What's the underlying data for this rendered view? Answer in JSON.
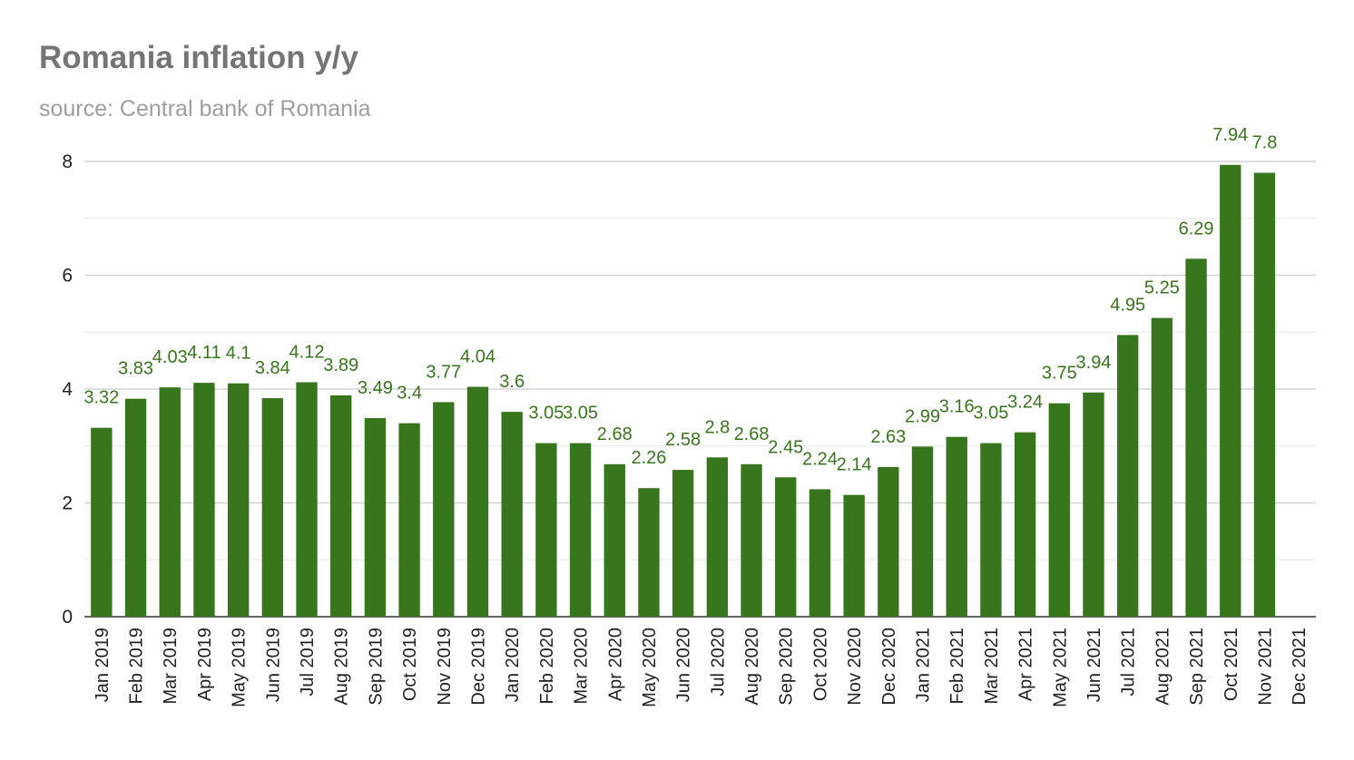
{
  "chart_data": {
    "type": "bar",
    "title": "Romania inflation y/y",
    "subtitle": "source: Central bank of Romania",
    "xlabel": "",
    "ylabel": "",
    "ylim": [
      0,
      8
    ],
    "yticks": [
      "0",
      "2",
      "4",
      "6",
      "8"
    ],
    "bar_color": "#38761d",
    "label_color": "#38761d",
    "grid": true,
    "categories": [
      "Jan 2019",
      "Feb 2019",
      "Mar 2019",
      "Apr 2019",
      "May 2019",
      "Jun 2019",
      "Jul 2019",
      "Aug 2019",
      "Sep 2019",
      "Oct 2019",
      "Nov 2019",
      "Dec 2019",
      "Jan 2020",
      "Feb 2020",
      "Mar 2020",
      "Apr 2020",
      "May 2020",
      "Jun 2020",
      "Jul 2020",
      "Aug 2020",
      "Sep 2020",
      "Oct 2020",
      "Nov 2020",
      "Dec 2020",
      "Jan 2021",
      "Feb 2021",
      "Mar 2021",
      "Apr 2021",
      "May 2021",
      "Jun 2021",
      "Jul 2021",
      "Aug 2021",
      "Sep 2021",
      "Oct 2021",
      "Nov 2021",
      "Dec 2021"
    ],
    "values": [
      3.32,
      3.83,
      4.03,
      4.11,
      4.1,
      3.84,
      4.12,
      3.89,
      3.49,
      3.4,
      3.77,
      4.04,
      3.6,
      3.05,
      3.05,
      2.68,
      2.26,
      2.58,
      2.8,
      2.68,
      2.45,
      2.24,
      2.14,
      2.63,
      2.99,
      3.16,
      3.05,
      3.24,
      3.75,
      3.94,
      4.95,
      5.25,
      6.29,
      7.94,
      7.8,
      null
    ],
    "labels": [
      "3.32",
      "3.83",
      "4.03",
      "4.11",
      "4.1",
      "3.84",
      "4.12",
      "3.89",
      "3.49",
      "3.4",
      "3.77",
      "4.04",
      "3.6",
      "3.05",
      "3.05",
      "2.68",
      "2.26",
      "2.58",
      "2.8",
      "2.68",
      "2.45",
      "2.24",
      "2.14",
      "2.63",
      "2.99",
      "3.16",
      "3.05",
      "3.24",
      "3.75",
      "3.94",
      "4.95",
      "5.25",
      "6.29",
      "7.94",
      "7.8",
      ""
    ]
  }
}
